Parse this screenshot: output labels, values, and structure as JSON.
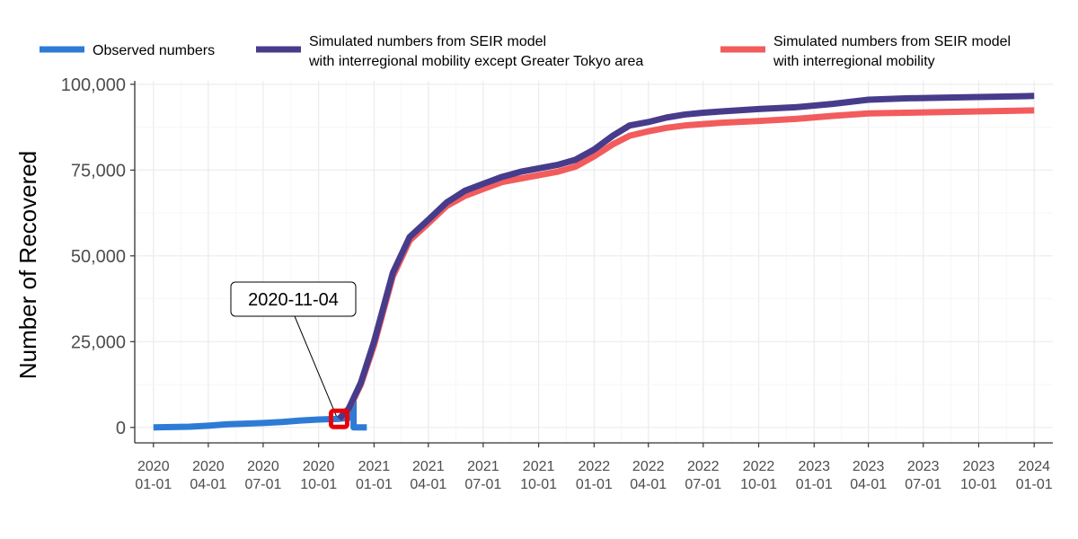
{
  "chart_data": {
    "type": "line",
    "ylabel": "Number of Recovered",
    "xlabel": "",
    "x_type": "date",
    "xlim": [
      "2019-12-01",
      "2024-02-01"
    ],
    "ylim": [
      -4500,
      101000
    ],
    "x_ticks": [
      {
        "date": "2020-01-01",
        "line1": "2020",
        "line2": "01-01"
      },
      {
        "date": "2020-04-01",
        "line1": "2020",
        "line2": "04-01"
      },
      {
        "date": "2020-07-01",
        "line1": "2020",
        "line2": "07-01"
      },
      {
        "date": "2020-10-01",
        "line1": "2020",
        "line2": "10-01"
      },
      {
        "date": "2021-01-01",
        "line1": "2021",
        "line2": "01-01"
      },
      {
        "date": "2021-04-01",
        "line1": "2021",
        "line2": "04-01"
      },
      {
        "date": "2021-07-01",
        "line1": "2021",
        "line2": "07-01"
      },
      {
        "date": "2021-10-01",
        "line1": "2021",
        "line2": "10-01"
      },
      {
        "date": "2022-01-01",
        "line1": "2022",
        "line2": "01-01"
      },
      {
        "date": "2022-04-01",
        "line1": "2022",
        "line2": "04-01"
      },
      {
        "date": "2022-07-01",
        "line1": "2022",
        "line2": "07-01"
      },
      {
        "date": "2022-10-01",
        "line1": "2022",
        "line2": "10-01"
      },
      {
        "date": "2023-01-01",
        "line1": "2023",
        "line2": "01-01"
      },
      {
        "date": "2023-04-01",
        "line1": "2023",
        "line2": "04-01"
      },
      {
        "date": "2023-07-01",
        "line1": "2023",
        "line2": "07-01"
      },
      {
        "date": "2023-10-01",
        "line1": "2023",
        "line2": "10-01"
      },
      {
        "date": "2024-01-01",
        "line1": "2024",
        "line2": "01-01"
      }
    ],
    "y_ticks": [
      {
        "value": 0,
        "label": "0"
      },
      {
        "value": 25000,
        "label": "25,000"
      },
      {
        "value": 50000,
        "label": "50,000"
      },
      {
        "value": 75000,
        "label": "75,000"
      },
      {
        "value": 100000,
        "label": "100,000"
      }
    ],
    "grid": true,
    "legend_position": "top",
    "series": [
      {
        "name": "Observed numbers",
        "color": "#2e7bd6",
        "points": [
          [
            "2020-01-01",
            0
          ],
          [
            "2020-03-01",
            200
          ],
          [
            "2020-04-01",
            500
          ],
          [
            "2020-05-01",
            900
          ],
          [
            "2020-06-01",
            1100
          ],
          [
            "2020-07-01",
            1300
          ],
          [
            "2020-08-01",
            1600
          ],
          [
            "2020-09-01",
            2000
          ],
          [
            "2020-10-01",
            2300
          ],
          [
            "2020-11-04",
            2500
          ],
          [
            "2020-11-20",
            2800
          ],
          [
            "2020-11-28",
            7500
          ],
          [
            "2020-11-28",
            0
          ],
          [
            "2020-12-20",
            0
          ]
        ]
      },
      {
        "name": "Simulated numbers from SEIR model\nwith interregional mobility except Greater Tokyo area",
        "color": "#473c8b",
        "points": [
          [
            "2020-11-04",
            2500
          ],
          [
            "2020-11-20",
            5500
          ],
          [
            "2020-12-10",
            13000
          ],
          [
            "2021-01-01",
            25000
          ],
          [
            "2021-02-01",
            45000
          ],
          [
            "2021-03-01",
            55500
          ],
          [
            "2021-04-01",
            60500
          ],
          [
            "2021-05-01",
            65500
          ],
          [
            "2021-06-01",
            69000
          ],
          [
            "2021-07-01",
            71000
          ],
          [
            "2021-08-01",
            73000
          ],
          [
            "2021-09-01",
            74500
          ],
          [
            "2021-10-01",
            75500
          ],
          [
            "2021-11-01",
            76500
          ],
          [
            "2021-12-01",
            78000
          ],
          [
            "2022-01-01",
            81000
          ],
          [
            "2022-02-01",
            85000
          ],
          [
            "2022-03-01",
            88000
          ],
          [
            "2022-04-01",
            89000
          ],
          [
            "2022-05-01",
            90300
          ],
          [
            "2022-06-01",
            91200
          ],
          [
            "2022-07-01",
            91700
          ],
          [
            "2022-08-01",
            92100
          ],
          [
            "2022-10-01",
            92800
          ],
          [
            "2022-12-01",
            93300
          ],
          [
            "2023-02-01",
            94300
          ],
          [
            "2023-04-01",
            95500
          ],
          [
            "2023-06-01",
            95900
          ],
          [
            "2023-08-01",
            96100
          ],
          [
            "2023-10-01",
            96300
          ],
          [
            "2023-12-01",
            96500
          ],
          [
            "2024-01-01",
            96600
          ]
        ]
      },
      {
        "name": "Simulated numbers from SEIR model\nwith interregional mobility",
        "color": "#f25c5c",
        "points": [
          [
            "2020-11-04",
            2500
          ],
          [
            "2020-11-20",
            5300
          ],
          [
            "2020-12-10",
            12500
          ],
          [
            "2021-01-01",
            24000
          ],
          [
            "2021-02-01",
            44000
          ],
          [
            "2021-03-01",
            54500
          ],
          [
            "2021-04-01",
            59500
          ],
          [
            "2021-05-01",
            64500
          ],
          [
            "2021-06-01",
            67500
          ],
          [
            "2021-07-01",
            69500
          ],
          [
            "2021-08-01",
            71500
          ],
          [
            "2021-09-01",
            72500
          ],
          [
            "2021-10-01",
            73500
          ],
          [
            "2021-11-01",
            74500
          ],
          [
            "2021-12-01",
            76000
          ],
          [
            "2022-01-01",
            79000
          ],
          [
            "2022-02-01",
            82500
          ],
          [
            "2022-03-01",
            85000
          ],
          [
            "2022-04-01",
            86300
          ],
          [
            "2022-05-01",
            87300
          ],
          [
            "2022-06-01",
            88000
          ],
          [
            "2022-07-01",
            88400
          ],
          [
            "2022-08-01",
            88800
          ],
          [
            "2022-10-01",
            89300
          ],
          [
            "2022-12-01",
            89900
          ],
          [
            "2023-02-01",
            90800
          ],
          [
            "2023-04-01",
            91500
          ],
          [
            "2023-06-01",
            91700
          ],
          [
            "2023-08-01",
            91900
          ],
          [
            "2023-10-01",
            92100
          ],
          [
            "2023-12-01",
            92300
          ],
          [
            "2024-01-01",
            92400
          ]
        ]
      }
    ],
    "annotations": [
      {
        "text": "2020-11-04",
        "date": "2020-11-04",
        "value": 2500,
        "marker_color": "#e8000b"
      }
    ]
  },
  "legend": {
    "items": [
      {
        "label": "Observed numbers",
        "color": "#2e7bd6"
      },
      {
        "label1": "Simulated numbers from SEIR model",
        "label2": "with interregional mobility except Greater Tokyo area",
        "color": "#473c8b"
      },
      {
        "label1": "Simulated numbers from SEIR model",
        "label2": "with interregional mobility",
        "color": "#f25c5c"
      }
    ]
  }
}
